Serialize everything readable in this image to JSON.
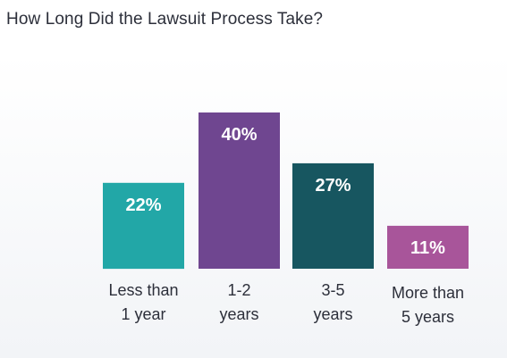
{
  "chart_data": {
    "type": "bar",
    "title": "How Long Did the Lawsuit Process Take?",
    "categories": [
      [
        "Less than",
        "1 year"
      ],
      [
        "1-2",
        "years"
      ],
      [
        "3-5",
        "years"
      ],
      [
        "More than",
        "5 years"
      ]
    ],
    "values": [
      22,
      40,
      27,
      11
    ],
    "value_labels": [
      "22%",
      "40%",
      "27%",
      "11%"
    ],
    "colors": [
      "#22a7a7",
      "#6f4690",
      "#175660",
      "#a8559a"
    ],
    "ylim": [
      0,
      40
    ],
    "grid": false,
    "legend": "none"
  }
}
